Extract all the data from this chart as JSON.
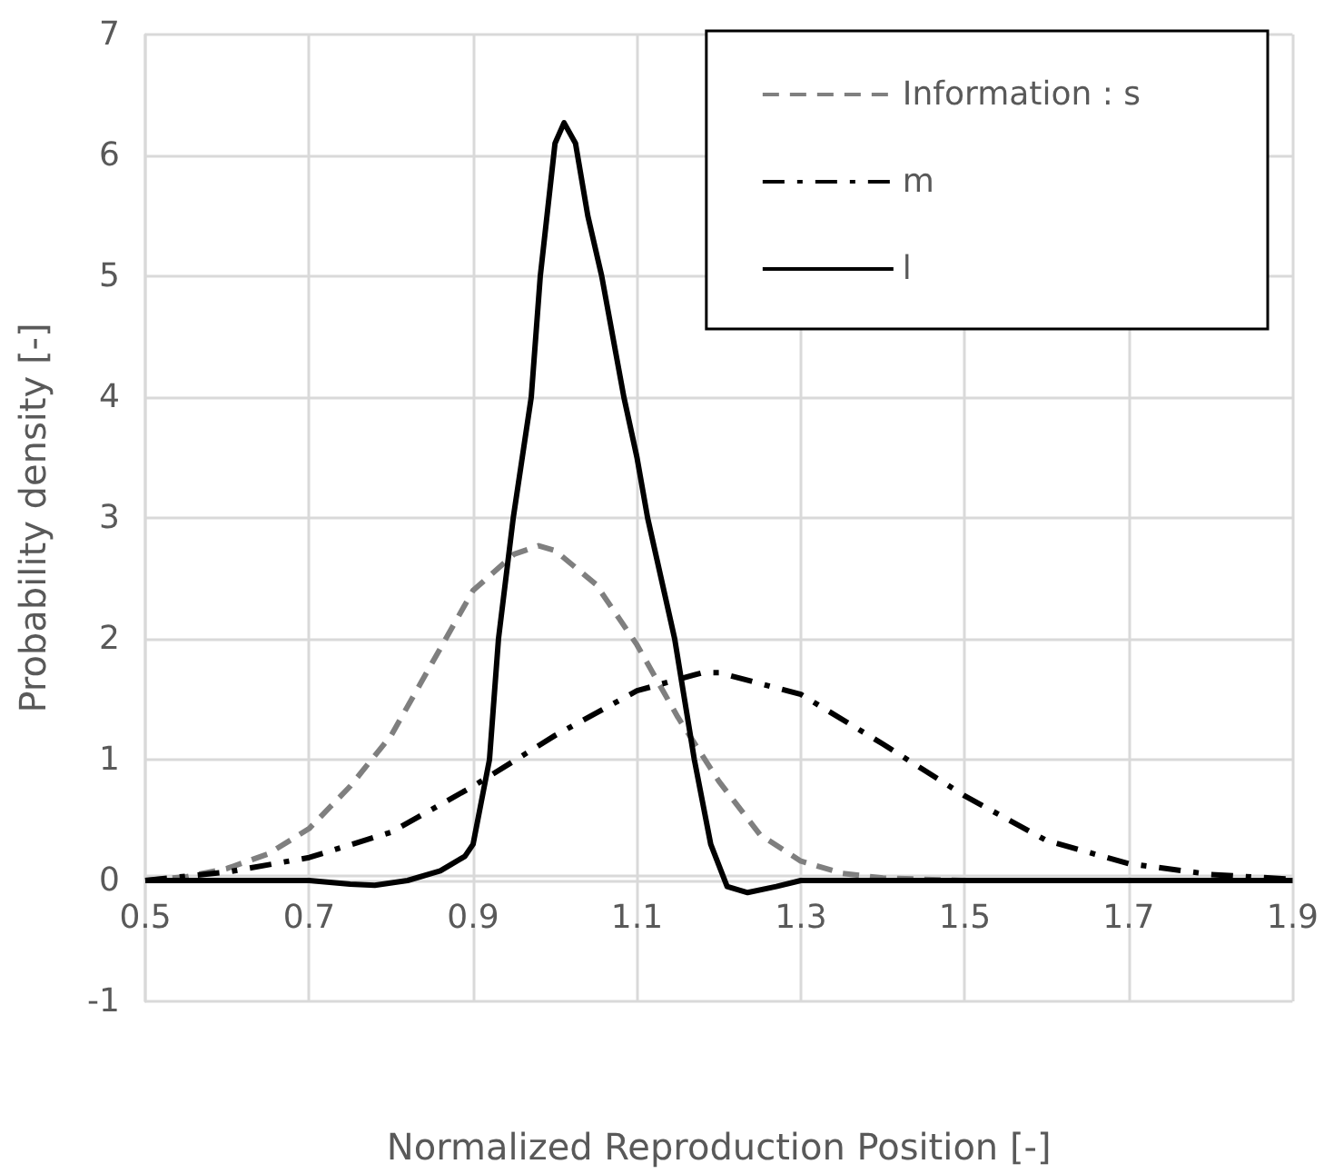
{
  "chart_data": {
    "type": "line",
    "xlabel": "Normalized Reproduction Position [-]",
    "ylabel": "Probability density [-]",
    "xlim": [
      0.5,
      1.9
    ],
    "xticks": [
      0.5,
      0.7,
      0.9,
      1.1,
      1.3,
      1.5,
      1.7,
      1.9
    ],
    "ylim": [
      -1,
      7
    ],
    "yticks": [
      -1,
      0,
      1,
      2,
      3,
      4,
      5,
      6,
      7
    ],
    "grid": true,
    "legend": "top right",
    "marker": "none",
    "series": [
      {
        "name": "Information : s",
        "color": "#7f7f7f",
        "line_style": "dashed",
        "x": [
          0.5,
          0.55,
          0.6,
          0.65,
          0.7,
          0.75,
          0.8,
          0.85,
          0.9,
          0.95,
          0.98,
          1.0,
          1.05,
          1.1,
          1.15,
          1.2,
          1.25,
          1.3,
          1.35,
          1.4,
          1.5,
          1.9
        ],
        "values": [
          0,
          0.03,
          0.1,
          0.22,
          0.43,
          0.78,
          1.2,
          1.8,
          2.4,
          2.7,
          2.77,
          2.73,
          2.45,
          1.95,
          1.35,
          0.82,
          0.38,
          0.16,
          0.06,
          0.02,
          0,
          0
        ]
      },
      {
        "name": "m",
        "color": "#000000",
        "line_style": "dashdot",
        "x": [
          0.5,
          0.6,
          0.7,
          0.8,
          0.9,
          1.0,
          1.1,
          1.18,
          1.2,
          1.3,
          1.4,
          1.5,
          1.6,
          1.7,
          1.8,
          1.9
        ],
        "values": [
          0,
          0.07,
          0.19,
          0.4,
          0.78,
          1.2,
          1.57,
          1.72,
          1.72,
          1.54,
          1.13,
          0.7,
          0.33,
          0.14,
          0.05,
          0.01
        ]
      },
      {
        "name": "l",
        "color": "#000000",
        "line_style": "solid",
        "x": [
          0.5,
          0.6,
          0.7,
          0.75,
          0.78,
          0.82,
          0.86,
          0.89,
          0.9,
          0.91,
          0.92,
          0.931,
          0.949,
          0.971,
          0.982,
          1.0,
          1.011,
          1.025,
          1.04,
          1.057,
          1.084,
          1.1,
          1.113,
          1.146,
          1.17,
          1.19,
          1.21,
          1.235,
          1.27,
          1.3,
          1.5,
          1.9
        ],
        "values": [
          0,
          0,
          0,
          -0.03,
          -0.04,
          0,
          0.08,
          0.2,
          0.3,
          0.65,
          1.0,
          2.0,
          3.0,
          4.0,
          5.0,
          6.1,
          6.27,
          6.1,
          5.5,
          5.0,
          4.0,
          3.5,
          3.0,
          2.0,
          1.0,
          0.3,
          -0.05,
          -0.1,
          -0.05,
          0,
          0,
          0
        ]
      }
    ]
  }
}
